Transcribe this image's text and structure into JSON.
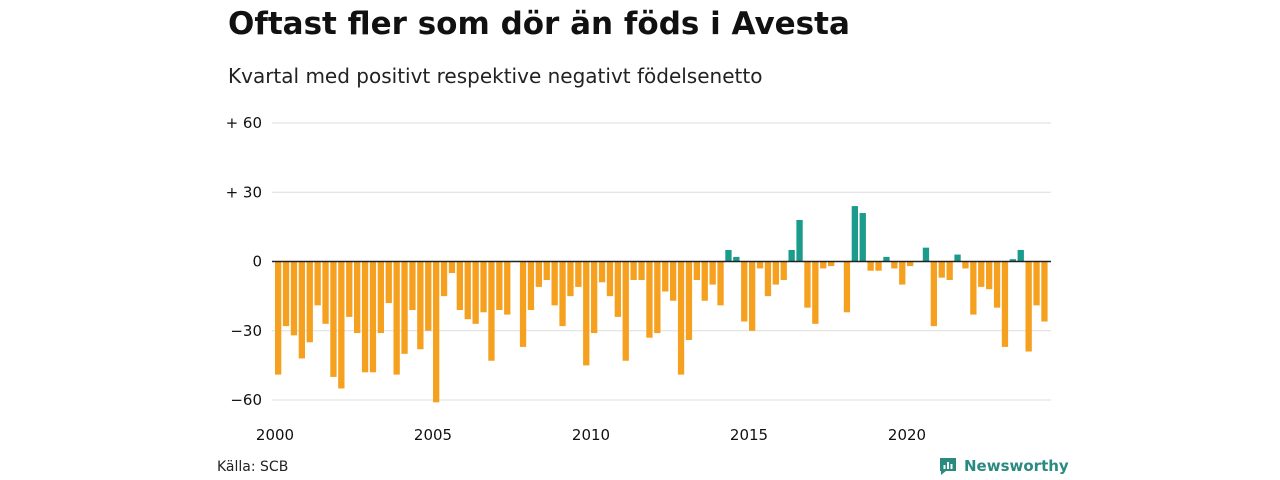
{
  "title": "Oftast fler som dör än föds i Avesta",
  "subtitle": "Kvartal med positivt respektive negativt födelsenetto",
  "source": "Källa: SCB",
  "brand": "Newsworthy",
  "colors": {
    "positive": "#1a9b8c",
    "negative": "#f5a01e",
    "grid": "#dddddd",
    "zero": "#222222",
    "brand": "#2a8a80"
  },
  "chart_data": {
    "type": "bar",
    "x_start": "2000 Q1",
    "ylim": [
      -60,
      60
    ],
    "yticks": [
      60,
      30,
      0,
      -30,
      -60
    ],
    "ytick_labels": [
      "+ 60",
      "+ 30",
      "0",
      "−30",
      "−60"
    ],
    "xticks": [
      {
        "index": 0,
        "label": "2000"
      },
      {
        "index": 20,
        "label": "2005"
      },
      {
        "index": 40,
        "label": "2010"
      },
      {
        "index": 60,
        "label": "2015"
      },
      {
        "index": 80,
        "label": "2020"
      }
    ],
    "values": [
      -49,
      -28,
      -32,
      -42,
      -35,
      -19,
      -27,
      -50,
      -55,
      -24,
      -31,
      -48,
      -48,
      -31,
      -18,
      -49,
      -40,
      -21,
      -38,
      -30,
      -61,
      -15,
      -5,
      -21,
      -25,
      -27,
      -22,
      -43,
      -21,
      -23,
      0,
      -37,
      -21,
      -11,
      -8,
      -19,
      -28,
      -15,
      -11,
      -45,
      -31,
      -9,
      -15,
      -24,
      -43,
      -8,
      -8,
      -33,
      -31,
      -13,
      -17,
      -49,
      -34,
      -8,
      -17,
      -10,
      -19,
      5,
      2,
      -26,
      -30,
      -3,
      -15,
      -10,
      -8,
      5,
      18,
      -20,
      -27,
      -3,
      -2,
      0,
      -22,
      24,
      21,
      -4,
      -4,
      2,
      -3,
      -10,
      -2,
      0,
      6,
      -28,
      -7,
      -8,
      3,
      -3,
      -23,
      -11,
      -12,
      -20,
      -37,
      1,
      5,
      -39,
      -19,
      -26
    ]
  }
}
